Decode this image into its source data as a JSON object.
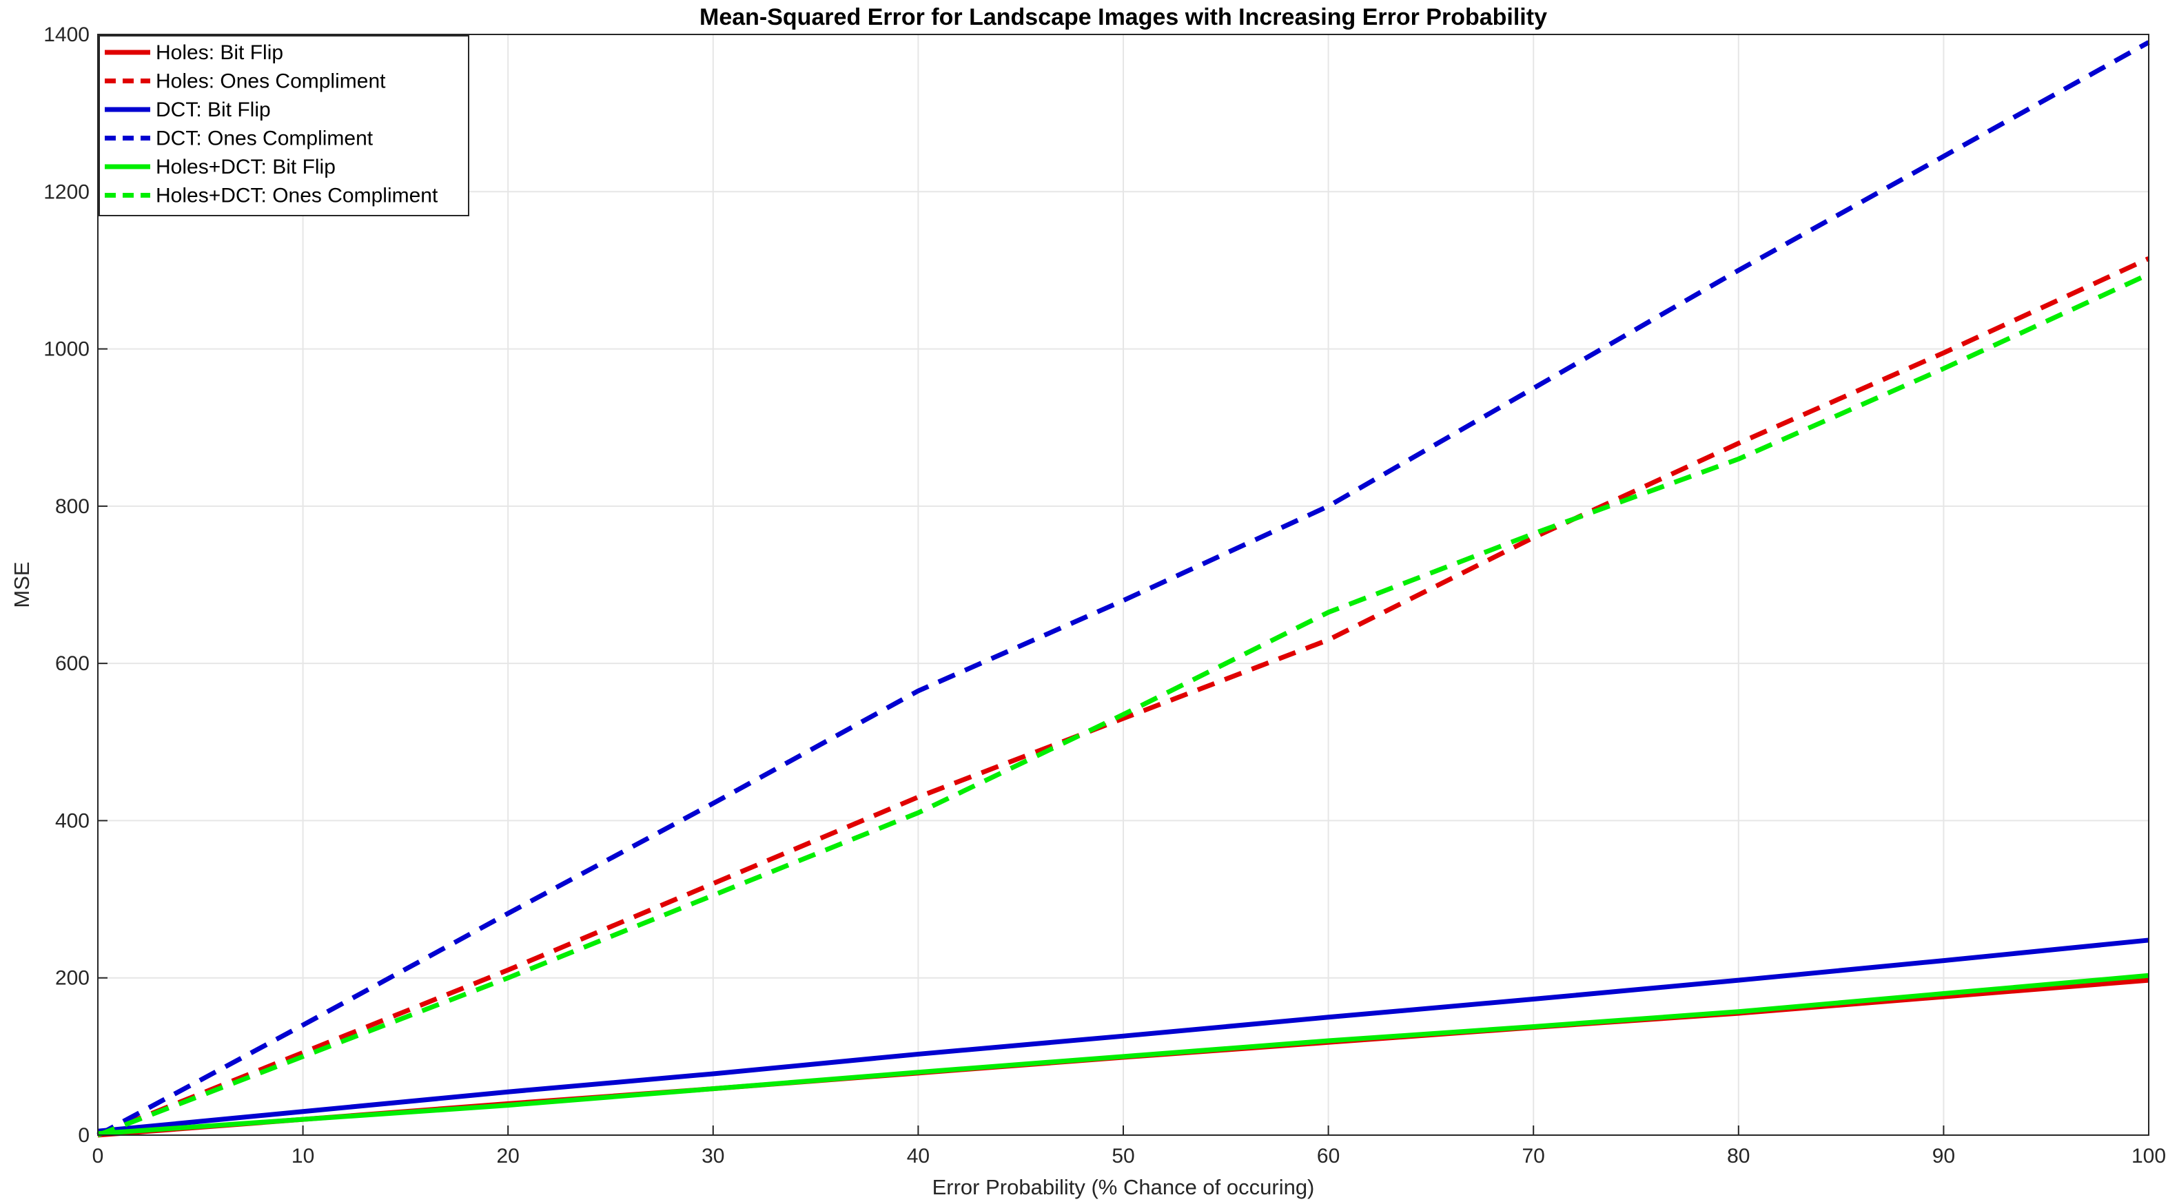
{
  "chart_data": {
    "type": "line",
    "title": "Mean-Squared Error for Landscape Images with Increasing Error Probability",
    "xlabel": "Error Probability (% Chance of occuring)",
    "ylabel": "MSE",
    "xlim": [
      0,
      100
    ],
    "ylim": [
      0,
      1400
    ],
    "xticks": [
      0,
      10,
      20,
      30,
      40,
      50,
      60,
      70,
      80,
      90,
      100
    ],
    "yticks": [
      0,
      200,
      400,
      600,
      800,
      1000,
      1200,
      1400
    ],
    "grid": true,
    "legend_position": "top-left",
    "series": [
      {
        "name": "Holes: Bit Flip",
        "color": "#e00000",
        "dash": "solid",
        "x": [
          0,
          10,
          20,
          30,
          40,
          50,
          60,
          70,
          80,
          90,
          100
        ],
        "y": [
          0,
          20,
          40,
          59,
          79,
          99,
          118,
          137,
          155,
          176,
          197
        ]
      },
      {
        "name": "Holes: Ones Compliment",
        "color": "#e00000",
        "dash": "dashed",
        "x": [
          0,
          10,
          20,
          30,
          40,
          50,
          60,
          70,
          80,
          90,
          100
        ],
        "y": [
          0,
          105,
          210,
          320,
          430,
          530,
          630,
          760,
          880,
          995,
          1115
        ]
      },
      {
        "name": "DCT: Bit Flip",
        "color": "#0000d0",
        "dash": "solid",
        "x": [
          0,
          10,
          20,
          30,
          40,
          50,
          60,
          70,
          80,
          90,
          100
        ],
        "y": [
          5,
          30,
          55,
          78,
          103,
          126,
          150,
          173,
          197,
          222,
          248
        ]
      },
      {
        "name": "DCT: Ones Compliment",
        "color": "#0000d0",
        "dash": "dashed",
        "x": [
          0,
          10,
          20,
          30,
          40,
          50,
          60,
          70,
          80,
          90,
          100
        ],
        "y": [
          0,
          140,
          282,
          422,
          565,
          680,
          800,
          950,
          1100,
          1245,
          1390
        ]
      },
      {
        "name": "Holes+DCT: Bit Flip",
        "color": "#00ee00",
        "dash": "solid",
        "x": [
          0,
          10,
          20,
          30,
          40,
          50,
          60,
          70,
          80,
          90,
          100
        ],
        "y": [
          2,
          20,
          38,
          59,
          80,
          100,
          120,
          138,
          157,
          180,
          203
        ]
      },
      {
        "name": "Holes+DCT: Ones Compliment",
        "color": "#00ee00",
        "dash": "dashed",
        "x": [
          0,
          10,
          20,
          30,
          40,
          50,
          60,
          70,
          80,
          90,
          100
        ],
        "y": [
          0,
          100,
          200,
          305,
          410,
          535,
          665,
          765,
          860,
          975,
          1095
        ]
      }
    ]
  }
}
